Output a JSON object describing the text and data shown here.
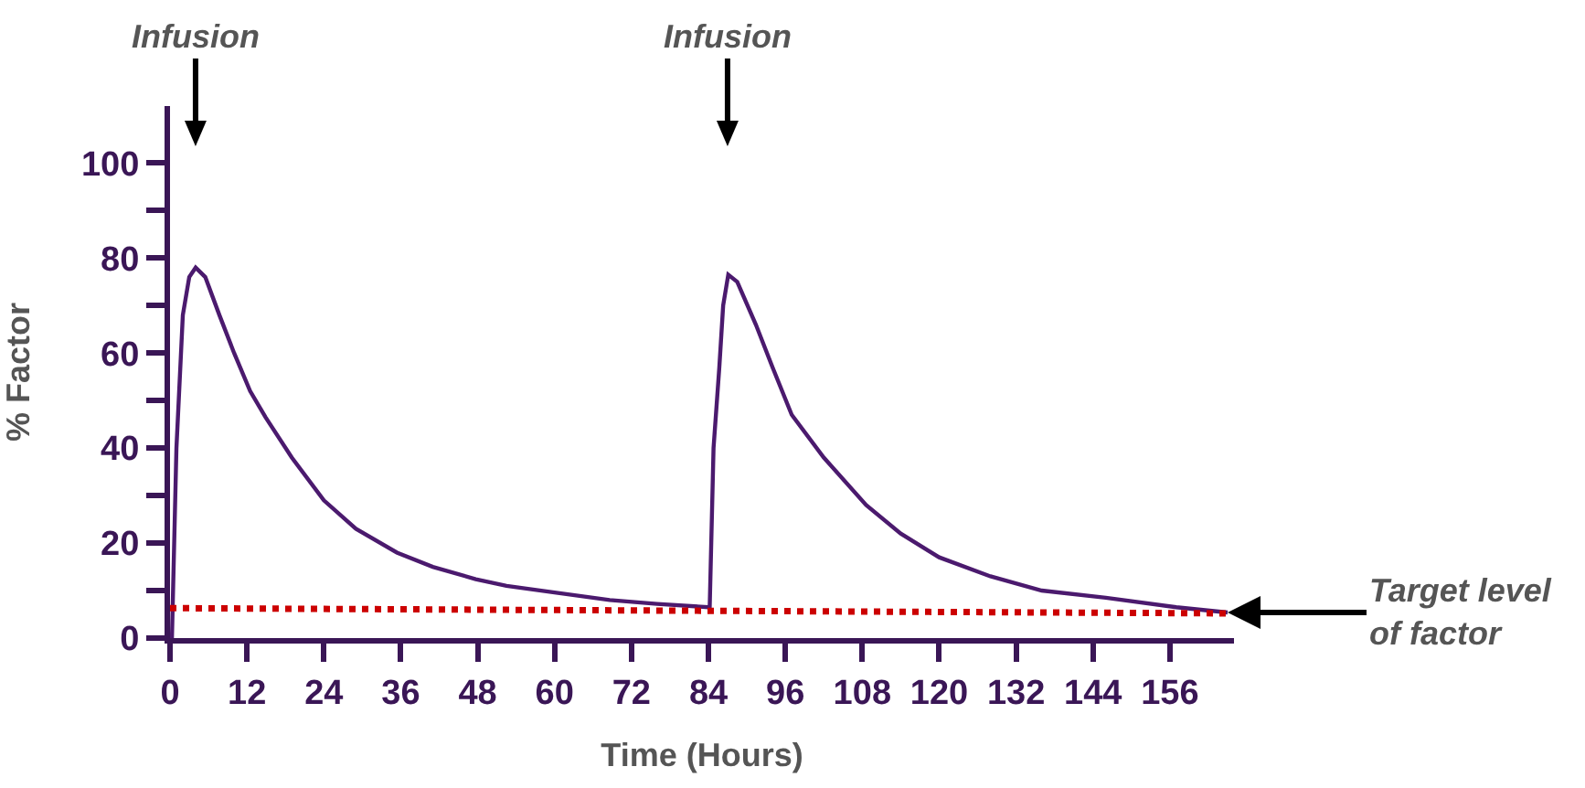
{
  "chart_data": {
    "type": "line",
    "xlabel": "Time (Hours)",
    "ylabel": "% Factor",
    "xlim": [
      0,
      166
    ],
    "ylim": [
      0,
      112
    ],
    "xticks": [
      0,
      12,
      24,
      36,
      48,
      60,
      72,
      84,
      96,
      108,
      120,
      132,
      144,
      156
    ],
    "yticks": [
      0,
      {
        "value": 10,
        "label": null
      },
      20,
      {
        "value": 30,
        "label": null
      },
      40,
      {
        "value": 50,
        "label": null
      },
      60,
      {
        "value": 70,
        "label": null
      },
      80,
      {
        "value": 90,
        "label": null
      },
      100
    ],
    "grid": false,
    "marker": "none",
    "series": [
      {
        "color": "#4b1a6e",
        "line_style": "solid",
        "x": [
          0,
          0.3,
          1,
          2,
          3,
          4,
          5.5,
          7.7,
          10,
          12.5,
          14.9,
          19,
          24,
          29,
          35.4,
          41,
          47.7,
          52.5,
          60,
          68.6,
          76,
          84,
          84.2,
          84.8,
          85.7,
          86.3,
          87.1,
          88.5,
          91.4,
          94,
          97,
          102,
          108.6,
          114,
          120,
          128,
          136,
          146,
          157,
          165
        ],
        "values": [
          0,
          0,
          40,
          68,
          76,
          78,
          76,
          68,
          60,
          52,
          46.5,
          38,
          29,
          23,
          18,
          15,
          12.4,
          11,
          9.6,
          8,
          7.2,
          6.5,
          6.5,
          40,
          57,
          70,
          76.5,
          75,
          66,
          57,
          47,
          38,
          28,
          22,
          17,
          13,
          10,
          8.5,
          6.5,
          5.4
        ]
      },
      {
        "color": "#cc0000",
        "line_style": "dotted",
        "x": [
          0,
          165
        ],
        "values": [
          6.3,
          5.2
        ]
      }
    ],
    "annotations": [
      "Infusion",
      "Infusion",
      {
        "text": "Target level\nof factor",
        "x": 165,
        "y": 5.4
      }
    ]
  }
}
